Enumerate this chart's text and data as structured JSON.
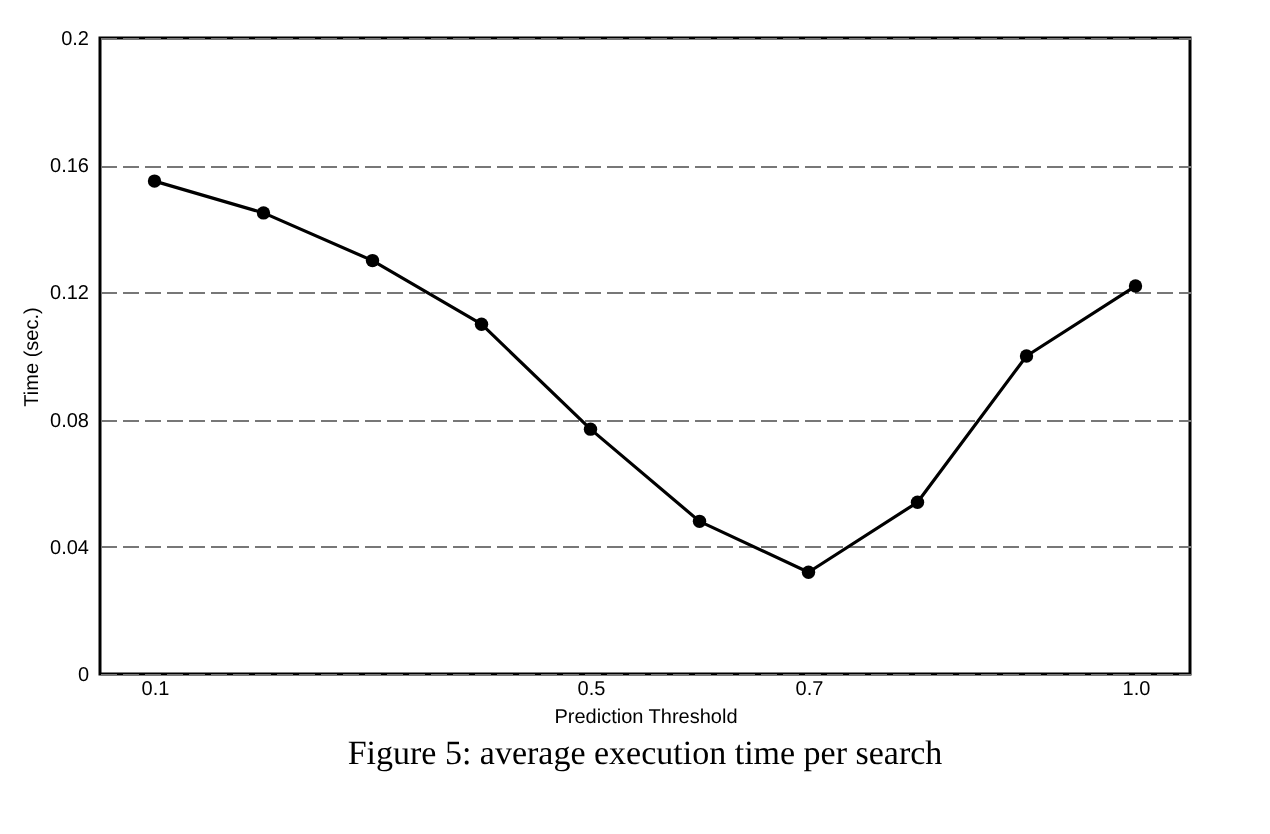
{
  "chart_data": {
    "type": "line",
    "xlabel": "Prediction Threshold",
    "ylabel": "Time (sec.)",
    "x": [
      0.1,
      0.2,
      0.3,
      0.4,
      0.5,
      0.6,
      0.7,
      0.8,
      0.9,
      1.0
    ],
    "series": [
      {
        "color": "#000000",
        "values": [
          0.155,
          0.145,
          0.13,
          0.11,
          0.077,
          0.048,
          0.032,
          0.054,
          0.1,
          0.122
        ]
      }
    ],
    "xlim": [
      0.05,
      1.05
    ],
    "xticks": [
      0.1,
      0.5,
      0.7,
      {
        "value": 1.0,
        "label": "1.0"
      }
    ],
    "ylim": [
      0,
      0.2
    ],
    "yticks": [
      0,
      0.04,
      0.08,
      0.12,
      0.16,
      0.2
    ],
    "grid": "y",
    "marker": "circle",
    "line_style": "solid",
    "legend": false,
    "annotations": [
      "Figure 5: average execution time per search"
    ]
  }
}
